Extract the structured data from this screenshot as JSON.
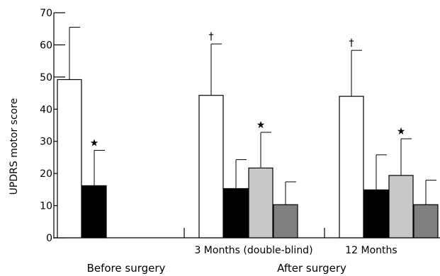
{
  "chart_data": {
    "type": "bar",
    "ylabel": "UPDRS motor score",
    "ylim": [
      0,
      70
    ],
    "yticks": [
      0,
      10,
      20,
      30,
      40,
      50,
      60,
      70
    ],
    "grid": false,
    "groups": [
      {
        "section": "Before surgery",
        "label": "",
        "bars": [
          {
            "value": 49.2,
            "error": 16.3,
            "fill": "#ffffff",
            "mark": ""
          },
          {
            "value": 16.2,
            "error": 11.0,
            "fill": "#000000",
            "mark": "★"
          }
        ]
      },
      {
        "section": "After surgery",
        "label": "3 Months (double-blind)",
        "bars": [
          {
            "value": 44.3,
            "error": 16.0,
            "fill": "#ffffff",
            "mark": "†"
          },
          {
            "value": 15.3,
            "error": 9.0,
            "fill": "#000000",
            "mark": ""
          },
          {
            "value": 21.7,
            "error": 11.1,
            "fill": "#c8c8c8",
            "mark": "★"
          },
          {
            "value": 10.3,
            "error": 7.1,
            "fill": "#808080",
            "mark": ""
          }
        ]
      },
      {
        "section": "After surgery",
        "label": "12 Months",
        "bars": [
          {
            "value": 44.0,
            "error": 14.3,
            "fill": "#ffffff",
            "mark": "†"
          },
          {
            "value": 14.9,
            "error": 10.9,
            "fill": "#000000",
            "mark": ""
          },
          {
            "value": 19.4,
            "error": 11.4,
            "fill": "#c8c8c8",
            "mark": "★"
          },
          {
            "value": 10.3,
            "error": 7.6,
            "fill": "#808080",
            "mark": ""
          }
        ]
      }
    ],
    "sections": [
      "Before surgery",
      "After surgery"
    ]
  }
}
